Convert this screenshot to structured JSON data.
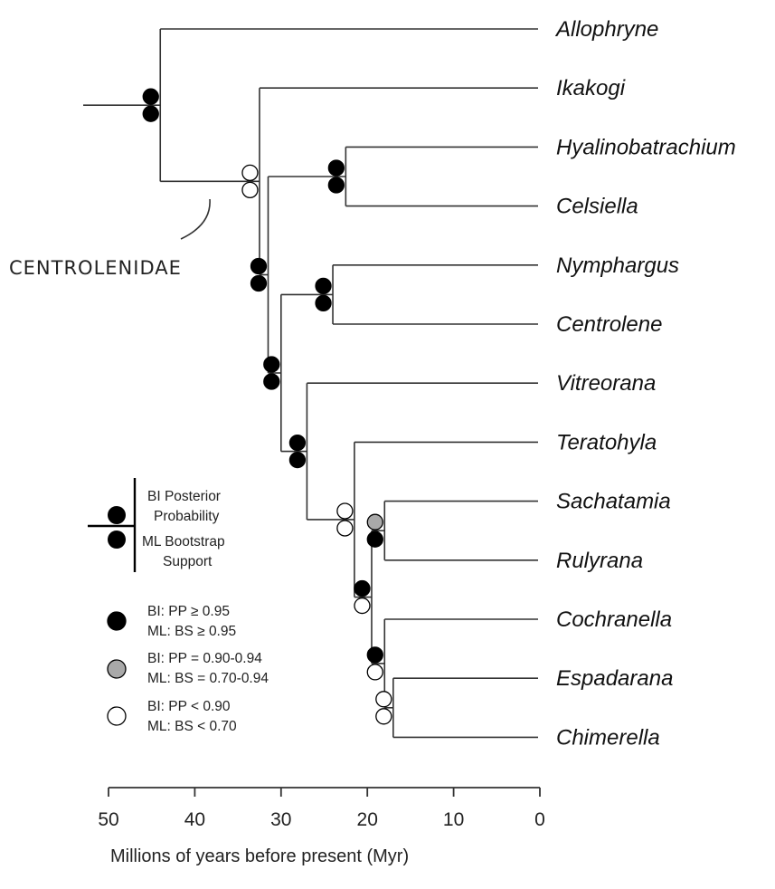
{
  "axis": {
    "label": "Millions of years before present (Myr)",
    "ticks": [
      "50",
      "40",
      "30",
      "20",
      "10",
      "0"
    ],
    "tick_values": [
      50,
      40,
      30,
      20,
      10,
      0
    ],
    "range": [
      50,
      0
    ]
  },
  "clade_label": "CENTROLENIDAE",
  "taxa": [
    "Allophryne",
    "Ikakogi",
    "Hyalinobatrachium",
    "Celsiella",
    "Nymphargus",
    "Centrolene",
    "Vitreorana",
    "Teratohyla",
    "Sachatamia",
    "Rulyrana",
    "Cochranella",
    "Espadarana",
    "Chimerella"
  ],
  "nodes": [
    {
      "name": "root",
      "age_myr": 44,
      "children": [
        "Allophryne",
        "centrolenidae"
      ],
      "bi": "black",
      "ml": "black"
    },
    {
      "name": "centrolenidae",
      "age_myr": 32.5,
      "children": [
        "Ikakogi",
        "n_main"
      ],
      "bi": "white",
      "ml": "white"
    },
    {
      "name": "n_main",
      "age_myr": 31.5,
      "children": [
        "n_hyal",
        "n_rest"
      ],
      "bi": "black",
      "ml": "black"
    },
    {
      "name": "n_hyal",
      "age_myr": 22.5,
      "children": [
        "Hyalinobatrachium",
        "Celsiella"
      ],
      "bi": "black",
      "ml": "black"
    },
    {
      "name": "n_rest",
      "age_myr": 30,
      "children": [
        "n_nym",
        "n_vit"
      ],
      "bi": "black",
      "ml": "black"
    },
    {
      "name": "n_nym",
      "age_myr": 24,
      "children": [
        "Nymphargus",
        "Centrolene"
      ],
      "bi": "black",
      "ml": "black"
    },
    {
      "name": "n_vit",
      "age_myr": 27,
      "children": [
        "Vitreorana",
        "n_tera"
      ],
      "bi": "black",
      "ml": "black"
    },
    {
      "name": "n_tera",
      "age_myr": 21.5,
      "children": [
        "Teratohyla",
        "n_sach"
      ],
      "bi": "white",
      "ml": "white"
    },
    {
      "name": "n_sach",
      "age_myr": 19.5,
      "children": [
        "n_sr",
        "n_coch"
      ],
      "bi": "black",
      "ml": "white"
    },
    {
      "name": "n_sr",
      "age_myr": 18,
      "children": [
        "Sachatamia",
        "Rulyrana"
      ],
      "bi": "gray",
      "ml": "black"
    },
    {
      "name": "n_coch",
      "age_myr": 18,
      "children": [
        "Cochranella",
        "n_esp"
      ],
      "bi": "black",
      "ml": "white"
    },
    {
      "name": "n_esp",
      "age_myr": 17,
      "children": [
        "Espadarana",
        "Chimerella"
      ],
      "bi": "white",
      "ml": "white"
    }
  ],
  "legend": {
    "bi_label_1": "BI Posterior",
    "bi_label_2": "Probability",
    "ml_label_1": "ML Bootstrap",
    "ml_label_2": "Support",
    "entries": [
      {
        "color": "black",
        "bi": "BI: PP ≥ 0.95",
        "ml": "ML: BS ≥ 0.95"
      },
      {
        "color": "gray",
        "bi": "BI: PP = 0.90-0.94",
        "ml": "ML: BS = 0.70-0.94"
      },
      {
        "color": "white",
        "bi": "BI: PP < 0.90",
        "ml": "ML: BS < 0.70"
      }
    ]
  },
  "colors": {
    "black": "#000000",
    "gray": "#a9a9a9",
    "white": "#ffffff",
    "line": "#333333"
  }
}
